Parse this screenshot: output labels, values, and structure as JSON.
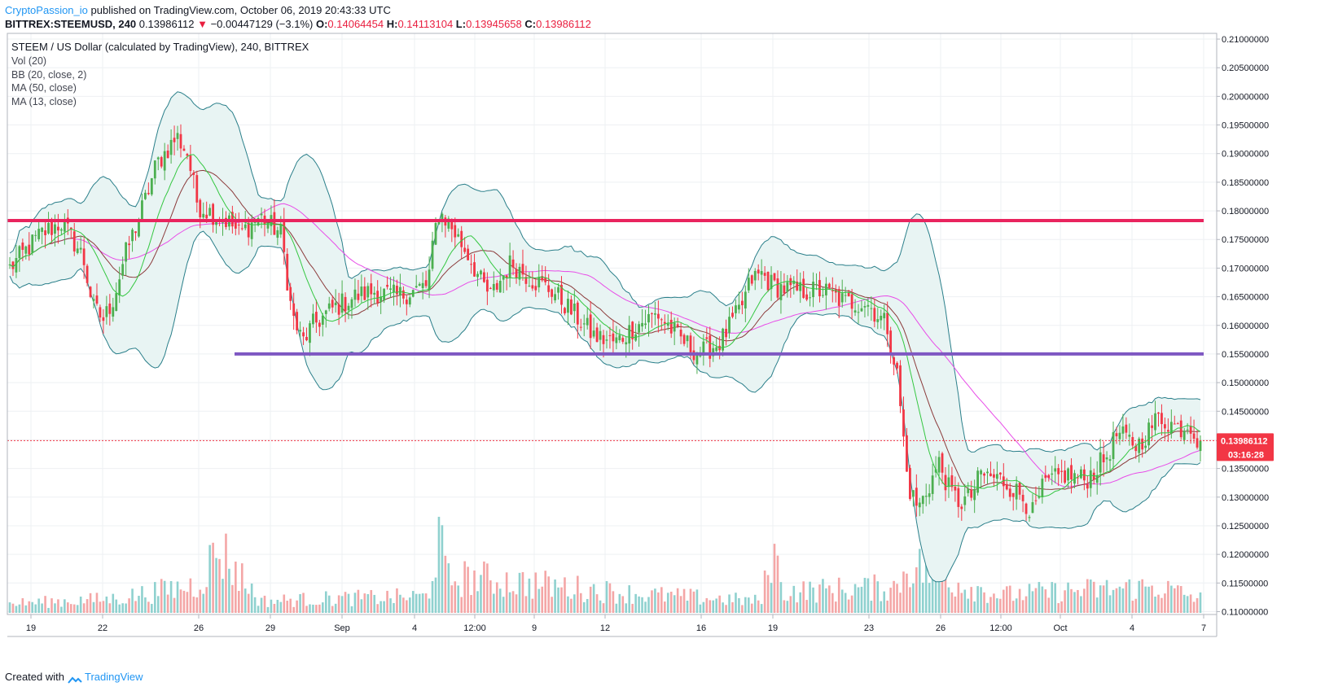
{
  "header": {
    "author": "CryptoPassion_io",
    "published_text": "published on TradingView.com, October 06, 2019 20:43:33 UTC"
  },
  "ohlc": {
    "symbol": "BITTREX:STEEMUSD, 240",
    "last": "0.13986112",
    "arrow": "▼",
    "change": "−0.00447129 (−3.1%)",
    "o_label": "O:",
    "o": "0.14064454",
    "h_label": "H:",
    "h": "0.14113104",
    "l_label": "L:",
    "l": "0.13945658",
    "c_label": "C:",
    "c": "0.13986112"
  },
  "legend": {
    "title": "STEEM / US Dollar (calculated by TradingView), 240, BITTREX",
    "vol": "Vol (20)",
    "bb": "BB (20, close, 2)",
    "ma50": "MA (50, close)",
    "ma13": "MA (13, close)"
  },
  "footer": {
    "created_with": "Created with",
    "brand": "TradingView"
  },
  "colors": {
    "up": "#4caf50",
    "down": "#f23645",
    "bb_fill": "#e8f4f3",
    "bb_line": "#2a7f8a",
    "ma13": "#34c741",
    "ma20": "#8b3a3a",
    "ma50": "#e84ce8",
    "resistance": "#e9245e",
    "support": "#7e57c2",
    "vol_up": "#8fd1cf",
    "vol_down": "#f4a6a6"
  },
  "price_tag": {
    "value": "0.13986112",
    "countdown": "03:16:28"
  },
  "chart_data": {
    "type": "candlestick",
    "ylim": [
      0.1095,
      0.211
    ],
    "y_ticks": [
      "0.21000000",
      "0.20500000",
      "0.20000000",
      "0.19500000",
      "0.19000000",
      "0.18500000",
      "0.18000000",
      "0.17500000",
      "0.17000000",
      "0.16500000",
      "0.16000000",
      "0.15500000",
      "0.15000000",
      "0.14500000",
      "0.14000000",
      "0.13500000",
      "0.13000000",
      "0.12500000",
      "0.12000000",
      "0.11500000",
      "0.11000000"
    ],
    "x_ticks": [
      "19",
      "22",
      "26",
      "29",
      "Sep",
      "4",
      "12:00",
      "9",
      "12",
      "16",
      "19",
      "23",
      "26",
      "12:00",
      "Oct",
      "4",
      "7"
    ],
    "resistance_level": 0.1783,
    "support_level": 0.155,
    "current_price": 0.13986112,
    "price_path": [
      [
        0,
        0.17
      ],
      [
        3,
        0.176
      ],
      [
        5,
        0.178
      ],
      [
        7,
        0.172
      ],
      [
        8,
        0.163
      ],
      [
        9,
        0.161
      ],
      [
        10,
        0.165
      ],
      [
        11,
        0.172
      ],
      [
        13,
        0.182
      ],
      [
        14,
        0.188
      ],
      [
        16,
        0.193
      ],
      [
        17,
        0.19
      ],
      [
        18,
        0.181
      ],
      [
        21,
        0.178
      ],
      [
        22,
        0.176
      ],
      [
        24,
        0.179
      ],
      [
        26,
        0.176
      ],
      [
        27,
        0.162
      ],
      [
        28,
        0.157
      ],
      [
        29,
        0.16
      ],
      [
        31,
        0.163
      ],
      [
        33,
        0.165
      ],
      [
        35,
        0.166
      ],
      [
        37,
        0.165
      ],
      [
        40,
        0.167
      ],
      [
        41,
        0.18
      ],
      [
        42,
        0.178
      ],
      [
        44,
        0.172
      ],
      [
        45,
        0.168
      ],
      [
        46,
        0.165
      ],
      [
        48,
        0.171
      ],
      [
        50,
        0.168
      ],
      [
        52,
        0.166
      ],
      [
        54,
        0.162
      ],
      [
        56,
        0.158
      ],
      [
        58,
        0.157
      ],
      [
        60,
        0.16
      ],
      [
        62,
        0.162
      ],
      [
        64,
        0.158
      ],
      [
        66,
        0.155
      ],
      [
        68,
        0.157
      ],
      [
        70,
        0.163
      ],
      [
        71,
        0.168
      ],
      [
        72,
        0.169
      ],
      [
        73,
        0.167
      ],
      [
        75,
        0.166
      ],
      [
        78,
        0.166
      ],
      [
        80,
        0.164
      ],
      [
        82,
        0.164
      ],
      [
        83,
        0.162
      ],
      [
        84,
        0.16
      ],
      [
        85,
        0.151
      ],
      [
        86,
        0.132
      ],
      [
        87,
        0.128
      ],
      [
        88,
        0.132
      ],
      [
        89,
        0.136
      ],
      [
        90,
        0.131
      ],
      [
        91,
        0.129
      ],
      [
        92,
        0.13
      ],
      [
        93,
        0.134
      ],
      [
        95,
        0.133
      ],
      [
        97,
        0.13
      ],
      [
        98,
        0.127
      ],
      [
        99,
        0.132
      ],
      [
        101,
        0.134
      ],
      [
        103,
        0.133
      ],
      [
        105,
        0.137
      ],
      [
        106,
        0.141
      ],
      [
        108,
        0.139
      ],
      [
        110,
        0.144
      ],
      [
        112,
        0.142
      ],
      [
        113,
        0.143
      ],
      [
        114,
        0.139
      ]
    ],
    "volume_profile": [
      [
        0,
        0.08
      ],
      [
        10,
        0.12
      ],
      [
        18,
        0.24
      ],
      [
        20,
        0.55
      ],
      [
        24,
        0.1
      ],
      [
        30,
        0.12
      ],
      [
        40,
        0.14
      ],
      [
        41,
        0.63
      ],
      [
        42,
        0.28
      ],
      [
        44,
        0.3
      ],
      [
        60,
        0.16
      ],
      [
        72,
        0.1
      ],
      [
        73,
        0.58
      ],
      [
        74,
        0.18
      ],
      [
        85,
        0.22
      ],
      [
        86,
        0.43
      ],
      [
        88,
        0.34
      ],
      [
        89,
        0.3
      ],
      [
        95,
        0.15
      ],
      [
        100,
        0.18
      ],
      [
        105,
        0.2
      ],
      [
        110,
        0.22
      ],
      [
        114,
        0.12
      ]
    ]
  }
}
